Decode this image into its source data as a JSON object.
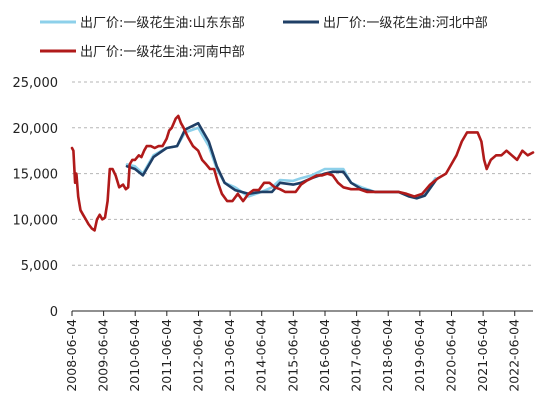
{
  "chart_data": {
    "type": "line",
    "title": "",
    "xlabel": "",
    "ylabel": "",
    "ylim": [
      0,
      25000
    ],
    "yticks": [
      "25,000",
      "20,000",
      "15,000",
      "10,000",
      "5,000",
      "0"
    ],
    "ytick_values": [
      25000,
      20000,
      15000,
      10000,
      5000,
      0
    ],
    "xlim": [
      "2008-06-04",
      "2023-01-01"
    ],
    "xticks": [
      "2008-06-04",
      "2009-06-04",
      "2010-06-04",
      "2011-06-04",
      "2012-06-04",
      "2013-06-04",
      "2014-06-04",
      "2015-06-04",
      "2016-06-04",
      "2017-06-04",
      "2018-06-04",
      "2019-06-04",
      "2020-06-04",
      "2021-06-04",
      "2022-06-04"
    ],
    "grid": "horizontal dashed",
    "legend_position": "top",
    "series": [
      {
        "name": "出厂价:一级花生油:山东东部",
        "color": "#8DD0EA",
        "points": [
          [
            "2010-03-01",
            16000
          ],
          [
            "2010-06-01",
            15800
          ],
          [
            "2010-09-01",
            15000
          ],
          [
            "2011-01-01",
            17000
          ],
          [
            "2011-06-01",
            17800
          ],
          [
            "2011-10-01",
            18000
          ],
          [
            "2012-01-01",
            19500
          ],
          [
            "2012-06-01",
            20000
          ],
          [
            "2012-10-01",
            18000
          ],
          [
            "2013-01-01",
            15500
          ],
          [
            "2013-04-01",
            14000
          ],
          [
            "2013-08-01",
            13500
          ],
          [
            "2014-01-01",
            12500
          ],
          [
            "2014-06-01",
            13000
          ],
          [
            "2014-10-01",
            13500
          ],
          [
            "2015-01-01",
            14300
          ],
          [
            "2015-06-01",
            14200
          ],
          [
            "2015-09-01",
            14500
          ],
          [
            "2016-01-01",
            14800
          ],
          [
            "2016-06-01",
            15500
          ],
          [
            "2016-09-01",
            15500
          ],
          [
            "2017-01-01",
            15500
          ],
          [
            "2017-04-01",
            14000
          ],
          [
            "2017-08-01",
            13500
          ],
          [
            "2018-01-01",
            13000
          ],
          [
            "2018-06-01",
            13000
          ],
          [
            "2018-10-01",
            13000
          ],
          [
            "2019-02-01",
            12600
          ],
          [
            "2019-05-01",
            12300
          ],
          [
            "2019-08-01",
            12800
          ],
          [
            "2019-12-01",
            14500
          ]
        ]
      },
      {
        "name": "出厂价:一级花生油:河北中部",
        "color": "#1F3F66",
        "points": [
          [
            "2010-03-01",
            15800
          ],
          [
            "2010-06-01",
            15500
          ],
          [
            "2010-09-01",
            14800
          ],
          [
            "2011-01-01",
            16800
          ],
          [
            "2011-06-01",
            17800
          ],
          [
            "2011-10-01",
            18000
          ],
          [
            "2012-01-01",
            19800
          ],
          [
            "2012-06-01",
            20500
          ],
          [
            "2012-10-01",
            18500
          ],
          [
            "2013-01-01",
            15800
          ],
          [
            "2013-04-01",
            14000
          ],
          [
            "2013-08-01",
            13200
          ],
          [
            "2014-01-01",
            12800
          ],
          [
            "2014-06-01",
            13000
          ],
          [
            "2014-10-01",
            13000
          ],
          [
            "2015-01-01",
            14000
          ],
          [
            "2015-06-01",
            13800
          ],
          [
            "2015-09-01",
            14000
          ],
          [
            "2016-01-01",
            14500
          ],
          [
            "2016-06-01",
            15000
          ],
          [
            "2016-09-01",
            15200
          ],
          [
            "2017-01-01",
            15200
          ],
          [
            "2017-04-01",
            14000
          ],
          [
            "2017-08-01",
            13300
          ],
          [
            "2018-01-01",
            13000
          ],
          [
            "2018-06-01",
            13000
          ],
          [
            "2018-10-01",
            13000
          ],
          [
            "2019-02-01",
            12500
          ],
          [
            "2019-05-01",
            12300
          ],
          [
            "2019-08-01",
            12600
          ],
          [
            "2019-12-01",
            14200
          ]
        ]
      },
      {
        "name": "出厂价:一级花生油:河南中部",
        "color": "#B01A1A",
        "points": [
          [
            "2008-06-04",
            17800
          ],
          [
            "2008-06-20",
            17500
          ],
          [
            "2008-07-10",
            14000
          ],
          [
            "2008-07-25",
            15000
          ],
          [
            "2008-08-15",
            12500
          ],
          [
            "2008-09-10",
            11000
          ],
          [
            "2008-10-10",
            10500
          ],
          [
            "2008-11-10",
            10000
          ],
          [
            "2008-12-10",
            9500
          ],
          [
            "2009-01-20",
            9000
          ],
          [
            "2009-02-20",
            8800
          ],
          [
            "2009-03-20",
            10000
          ],
          [
            "2009-04-20",
            10500
          ],
          [
            "2009-05-20",
            10000
          ],
          [
            "2009-06-20",
            10200
          ],
          [
            "2009-07-20",
            12000
          ],
          [
            "2009-08-15",
            15500
          ],
          [
            "2009-09-15",
            15500
          ],
          [
            "2009-10-20",
            14800
          ],
          [
            "2009-12-01",
            13500
          ],
          [
            "2010-01-15",
            13800
          ],
          [
            "2010-02-15",
            13300
          ],
          [
            "2010-03-15",
            13500
          ],
          [
            "2010-04-01",
            16000
          ],
          [
            "2010-05-01",
            16500
          ],
          [
            "2010-06-01",
            16500
          ],
          [
            "2010-07-15",
            17000
          ],
          [
            "2010-08-15",
            16800
          ],
          [
            "2010-09-15",
            17500
          ],
          [
            "2010-10-15",
            18000
          ],
          [
            "2010-12-01",
            18000
          ],
          [
            "2011-01-15",
            17800
          ],
          [
            "2011-03-01",
            18000
          ],
          [
            "2011-04-15",
            18000
          ],
          [
            "2011-06-01",
            18800
          ],
          [
            "2011-07-01",
            19700
          ],
          [
            "2011-08-01",
            20000
          ],
          [
            "2011-09-15",
            21000
          ],
          [
            "2011-10-15",
            21300
          ],
          [
            "2011-11-15",
            20500
          ],
          [
            "2011-12-15",
            20000
          ],
          [
            "2012-02-01",
            19000
          ],
          [
            "2012-04-01",
            18000
          ],
          [
            "2012-06-01",
            17500
          ],
          [
            "2012-07-15",
            16500
          ],
          [
            "2012-09-01",
            16000
          ],
          [
            "2012-10-15",
            15500
          ],
          [
            "2012-12-01",
            15500
          ],
          [
            "2013-01-15",
            14000
          ],
          [
            "2013-03-01",
            12800
          ],
          [
            "2013-05-01",
            12000
          ],
          [
            "2013-07-01",
            12000
          ],
          [
            "2013-09-01",
            12800
          ],
          [
            "2013-11-01",
            12000
          ],
          [
            "2014-01-01",
            12800
          ],
          [
            "2014-03-01",
            13200
          ],
          [
            "2014-05-01",
            13200
          ],
          [
            "2014-07-01",
            14000
          ],
          [
            "2014-09-01",
            14000
          ],
          [
            "2014-11-01",
            13500
          ],
          [
            "2015-01-01",
            13300
          ],
          [
            "2015-03-01",
            13000
          ],
          [
            "2015-05-01",
            13000
          ],
          [
            "2015-07-01",
            13000
          ],
          [
            "2015-09-01",
            13800
          ],
          [
            "2015-11-01",
            14200
          ],
          [
            "2016-01-01",
            14500
          ],
          [
            "2016-03-01",
            14800
          ],
          [
            "2016-05-01",
            14800
          ],
          [
            "2016-07-01",
            15000
          ],
          [
            "2016-09-01",
            14800
          ],
          [
            "2016-11-01",
            14000
          ],
          [
            "2017-01-01",
            13500
          ],
          [
            "2017-04-01",
            13300
          ],
          [
            "2017-07-01",
            13300
          ],
          [
            "2017-10-01",
            13000
          ],
          [
            "2018-01-01",
            13000
          ],
          [
            "2018-04-01",
            13000
          ],
          [
            "2018-07-01",
            13000
          ],
          [
            "2018-10-01",
            13000
          ],
          [
            "2019-01-01",
            12800
          ],
          [
            "2019-04-01",
            12500
          ],
          [
            "2019-07-01",
            12800
          ],
          [
            "2019-10-01",
            13800
          ],
          [
            "2020-01-01",
            14500
          ],
          [
            "2020-04-01",
            15000
          ],
          [
            "2020-06-01",
            16000
          ],
          [
            "2020-08-01",
            17000
          ],
          [
            "2020-10-01",
            18500
          ],
          [
            "2020-12-01",
            19500
          ],
          [
            "2021-02-01",
            19500
          ],
          [
            "2021-04-01",
            19500
          ],
          [
            "2021-05-15",
            18500
          ],
          [
            "2021-06-15",
            16500
          ],
          [
            "2021-07-15",
            15500
          ],
          [
            "2021-09-01",
            16500
          ],
          [
            "2021-11-01",
            17000
          ],
          [
            "2022-01-01",
            17000
          ],
          [
            "2022-03-01",
            17500
          ],
          [
            "2022-05-01",
            17000
          ],
          [
            "2022-07-01",
            16500
          ],
          [
            "2022-09-01",
            17500
          ],
          [
            "2022-11-01",
            17000
          ],
          [
            "2023-01-01",
            17300
          ]
        ]
      }
    ]
  }
}
